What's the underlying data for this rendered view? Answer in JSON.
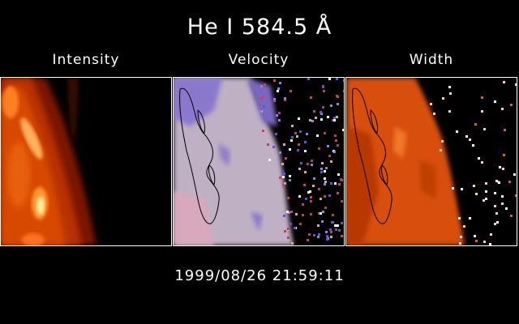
{
  "title": "He I 584.5 Å",
  "panels": [
    {
      "label": "Intensity"
    },
    {
      "label": "Velocity"
    },
    {
      "label": "Width"
    }
  ],
  "timestamp": "1999/08/26 21:59:11",
  "colors": {
    "background": "#000000",
    "text": "#ffffff",
    "intensity_hot": "#ffe080",
    "intensity_mid": "#d84a00",
    "intensity_low": "#5a0a00",
    "velocity_base": "#c8b8c8",
    "velocity_blue": "#6a58c8",
    "velocity_red": "#d05070",
    "width_base": "#d8500a",
    "width_dark": "#a02a00",
    "contour": "#000000"
  }
}
